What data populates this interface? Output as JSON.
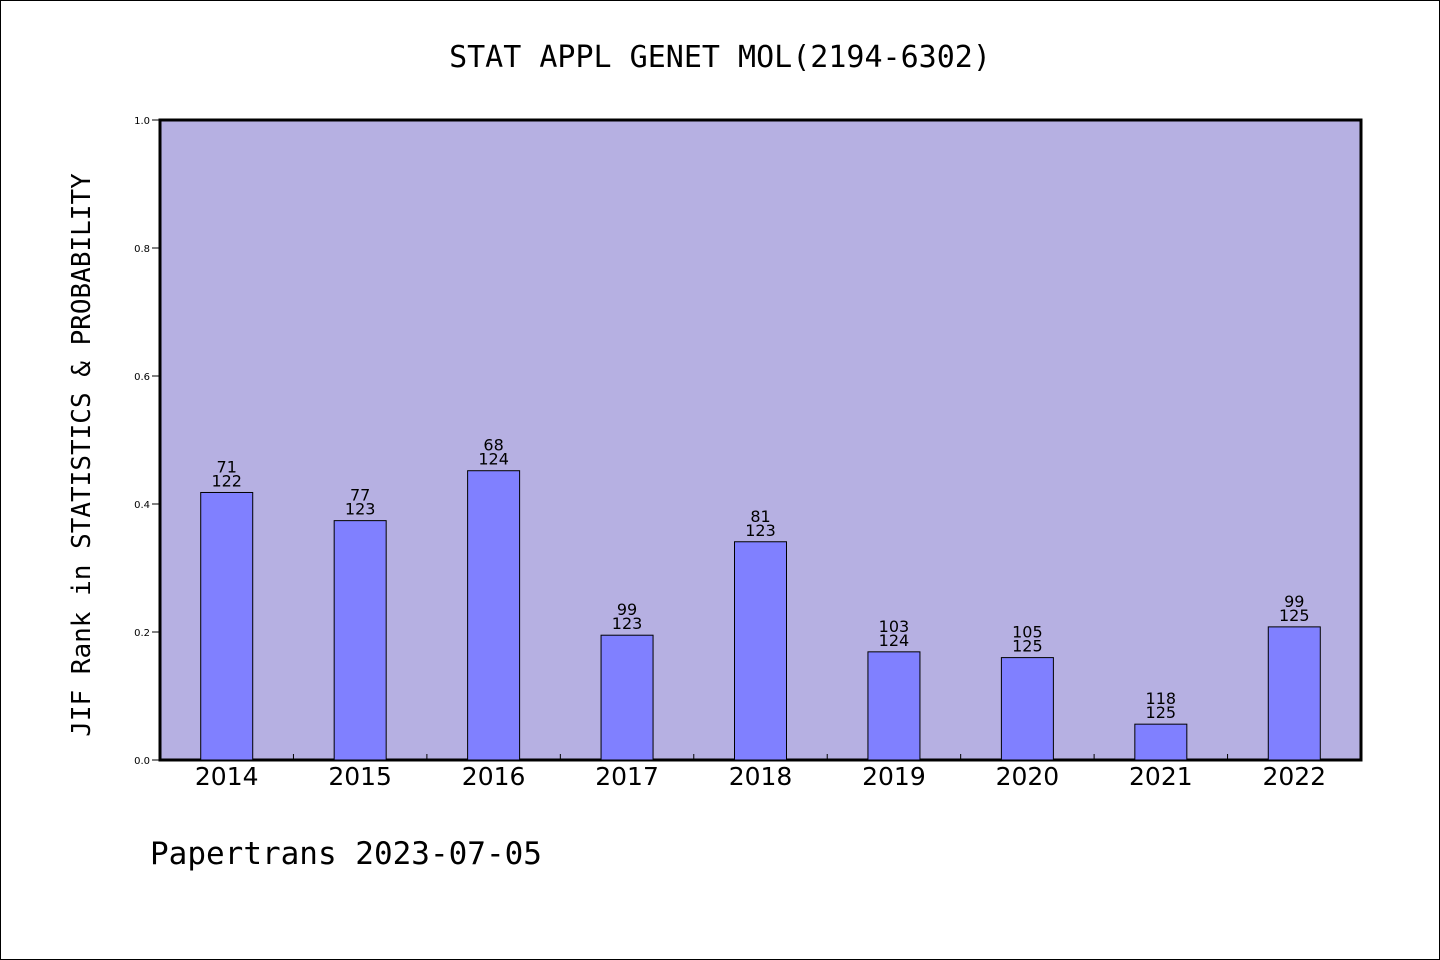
{
  "chart_data": {
    "type": "bar",
    "title": "STAT APPL GENET MOL(2194-6302)",
    "ylabel": "JIF Rank in STATISTICS & PROBABILITY",
    "xlabel": "",
    "ylim": [
      0,
      1.0
    ],
    "yticks": [
      "0.0",
      "0.2",
      "0.4",
      "0.6",
      "0.8",
      "1.0"
    ],
    "categories": [
      "2014",
      "2015",
      "2016",
      "2017",
      "2018",
      "2019",
      "2020",
      "2021",
      "2022"
    ],
    "values": [
      0.418,
      0.374,
      0.452,
      0.195,
      0.341,
      0.169,
      0.16,
      0.056,
      0.208
    ],
    "ranks": [
      "71",
      "77",
      "68",
      "99",
      "81",
      "103",
      "105",
      "118",
      "99"
    ],
    "totals": [
      "122",
      "123",
      "124",
      "123",
      "123",
      "124",
      "125",
      "125",
      "125"
    ],
    "grid": false,
    "legend": "none",
    "colors": {
      "plot_background": "#b6b0e2",
      "bar_fill": "#8080ff",
      "bar_stroke": "#000000"
    }
  },
  "footer": {
    "text": "Papertrans 2023-07-05"
  }
}
